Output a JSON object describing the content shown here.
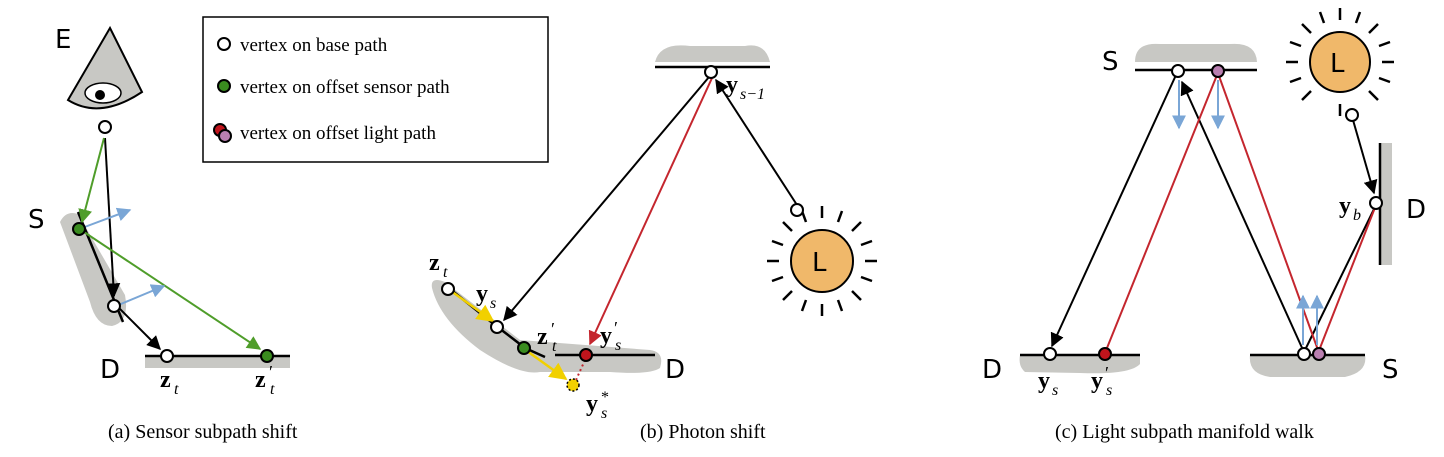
{
  "legend": {
    "base": "vertex on base path",
    "sensor": "vertex on offset sensor path",
    "light": "vertex on offset light path"
  },
  "colors": {
    "surface": "#c8c8c4",
    "base_vertex": "#ffffff",
    "sensor_vertex": "#3a8c1f",
    "light_vertex_red": "#c0141c",
    "light_vertex_purple": "#b97fb0",
    "green_edge": "#4f9d2a",
    "red_edge": "#c4262e",
    "blue_arrow": "#7aa6d6",
    "yellow_arrow": "#f1d000",
    "light_fill": "#f0b86a"
  },
  "panel_a": {
    "caption": "(a) Sensor subpath shift",
    "label_E": "E",
    "label_S": "S",
    "label_D": "D",
    "z_t": "z",
    "z_t_sub": "t",
    "z_t_prime": "z",
    "z_t_prime_sub": "t",
    "prime": "′"
  },
  "panel_b": {
    "caption": "(b) Photon shift",
    "label_D": "D",
    "label_L": "L",
    "y_s_minus_1": "y",
    "y_s_minus_1_sub": "s−1",
    "z_t": "z",
    "z_t_sub": "t",
    "y_s": "y",
    "y_s_sub": "s",
    "z_t_prime": "z",
    "z_t_prime_sub": "t",
    "y_s_prime": "y",
    "y_s_prime_sub": "s",
    "y_s_star": "y",
    "y_s_star_sub": "s",
    "prime": "′",
    "star": "*"
  },
  "panel_c": {
    "caption": "(c) Light subpath manifold walk",
    "label_S_top": "S",
    "label_S_bottom": "S",
    "label_D_left": "D",
    "label_D_right": "D",
    "label_L": "L",
    "y_b": "y",
    "y_b_sub": "b",
    "y_s": "y",
    "y_s_sub": "s",
    "y_s_prime": "y",
    "y_s_prime_sub": "s",
    "prime": "′"
  }
}
